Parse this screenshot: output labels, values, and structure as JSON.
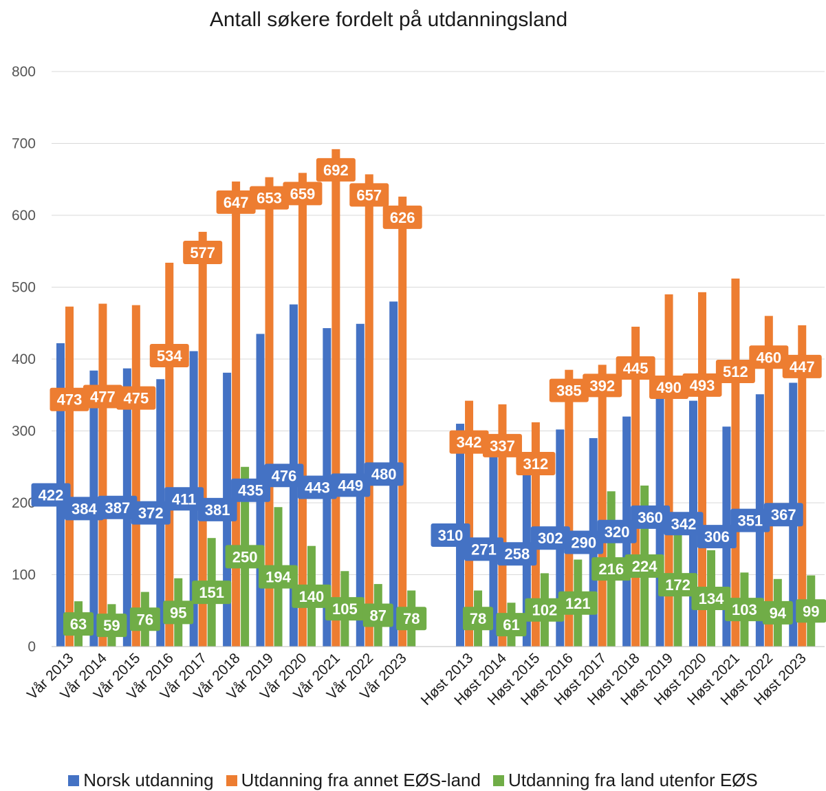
{
  "chart_data": {
    "type": "bar",
    "title": "Antall søkere fordelt på utdanningsland",
    "xlabel": "",
    "ylabel": "",
    "ylim": [
      0,
      800
    ],
    "yticks": [
      0,
      100,
      200,
      300,
      400,
      500,
      600,
      700,
      800
    ],
    "grid": true,
    "legend_position": "bottom",
    "categories": [
      "Vår 2013",
      "Vår 2014",
      "Vår 2015",
      "Vår 2016",
      "Vår 2017",
      "Vår 2018",
      "Vår 2019",
      "Vår 2020",
      "Vår 2021",
      "Vår 2022",
      "Vår 2023",
      "",
      "Høst 2013",
      "Høst 2014",
      "Høst 2015",
      "Høst 2016",
      "Høst 2017",
      "Høst 2018",
      "Høst 2019",
      "Høst 2020",
      "Høst 2021",
      "Høst 2022",
      "Høst 2023"
    ],
    "series": [
      {
        "name": "Norsk utdanning",
        "color": "#4472C4",
        "values": [
          422,
          384,
          387,
          372,
          411,
          381,
          435,
          476,
          443,
          449,
          480,
          null,
          310,
          271,
          258,
          302,
          290,
          320,
          360,
          342,
          306,
          351,
          367
        ]
      },
      {
        "name": "Utdanning fra annet EØS-land",
        "color": "#ED7D31",
        "values": [
          473,
          477,
          475,
          534,
          577,
          647,
          653,
          659,
          692,
          657,
          626,
          null,
          342,
          337,
          312,
          385,
          392,
          445,
          490,
          493,
          512,
          460,
          447
        ]
      },
      {
        "name": "Utdanning fra land utenfor EØS",
        "color": "#70AD47",
        "values": [
          63,
          59,
          76,
          95,
          151,
          250,
          194,
          140,
          105,
          87,
          78,
          null,
          78,
          61,
          102,
          121,
          216,
          224,
          172,
          134,
          103,
          94,
          99
        ]
      }
    ]
  }
}
